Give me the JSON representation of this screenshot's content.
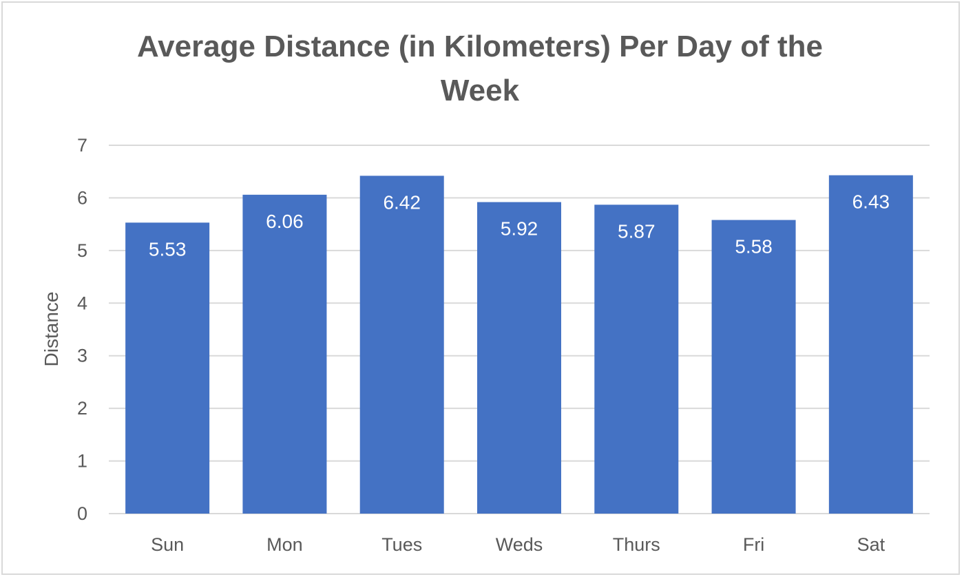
{
  "chart_data": {
    "type": "bar",
    "title_lines": [
      "Average Distance (in Kilometers) Per Day of the",
      "Week"
    ],
    "xlabel": "",
    "ylabel": "Distance",
    "ylim": [
      0,
      7
    ],
    "yticks": [
      "0",
      "1",
      "2",
      "3",
      "4",
      "5",
      "6",
      "7"
    ],
    "categories": [
      "Sun",
      "Mon",
      "Tues",
      "Weds",
      "Thurs",
      "Fri",
      "Sat"
    ],
    "values": [
      5.53,
      6.06,
      6.42,
      5.92,
      5.87,
      5.58,
      6.43
    ],
    "data_labels": [
      "5.53",
      "6.06",
      "6.42",
      "5.92",
      "5.87",
      "5.58",
      "6.43"
    ],
    "grid": true,
    "legend": "none",
    "colors": {
      "bar": "#4472c4",
      "grid": "#d9d9d9",
      "text": "#595959",
      "data_label": "#ffffff"
    }
  }
}
